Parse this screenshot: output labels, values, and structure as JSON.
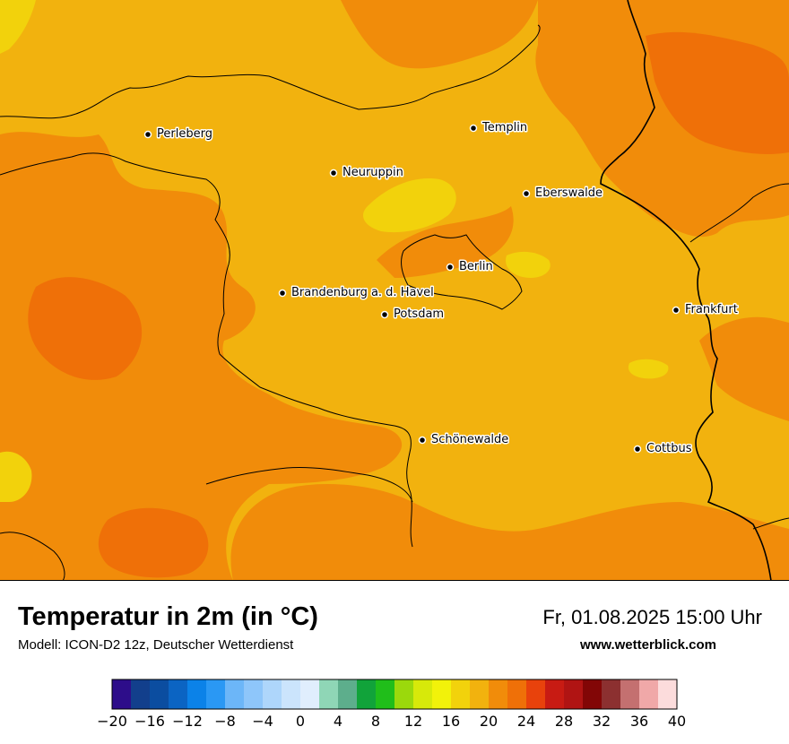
{
  "title": "Temperatur in 2m (in °C)",
  "subtitle": "Modell: ICON-D2 12z, Deutscher Wetterdienst",
  "datetime": "Fr, 01.08.2025 15:00 Uhr",
  "website": "www.wetterblick.com",
  "colors": {
    "base": "#f2b20e",
    "warm": "#f18c0a",
    "hot": "#ef7008",
    "cool": "#f2d20c",
    "border": "#000000"
  },
  "cities": [
    {
      "name": "Perleberg"
    },
    {
      "name": "Templin"
    },
    {
      "name": "Neuruppin"
    },
    {
      "name": "Eberswalde"
    },
    {
      "name": "Berlin"
    },
    {
      "name": "Brandenburg a. d. Havel"
    },
    {
      "name": "Potsdam"
    },
    {
      "name": "Frankfurt"
    },
    {
      "name": "Schönewalde"
    },
    {
      "name": "Cottbus"
    }
  ],
  "legend": {
    "min": -20,
    "max": 40,
    "step": 2,
    "tick_labels": [
      "−20",
      "−16",
      "−12",
      "−8",
      "−4",
      "0",
      "4",
      "8",
      "12",
      "16",
      "20",
      "24",
      "28",
      "32",
      "36",
      "40"
    ],
    "colors": [
      "#2d0d8a",
      "#123f8c",
      "#0b4da0",
      "#0b64c3",
      "#0b82e8",
      "#2a98f4",
      "#6cb6f8",
      "#8ec6fa",
      "#aed6fb",
      "#cbe4fc",
      "#e0eefd",
      "#8fd6b6",
      "#5dae8c",
      "#11a33a",
      "#20be1a",
      "#9bd90c",
      "#d7e90a",
      "#f2f20a",
      "#f2d20c",
      "#f2b20e",
      "#f18c0a",
      "#ef7008",
      "#e8420c",
      "#c81b13",
      "#b01413",
      "#820606",
      "#8c3030",
      "#c47070",
      "#f0a8a8",
      "#fcdcdc"
    ]
  }
}
